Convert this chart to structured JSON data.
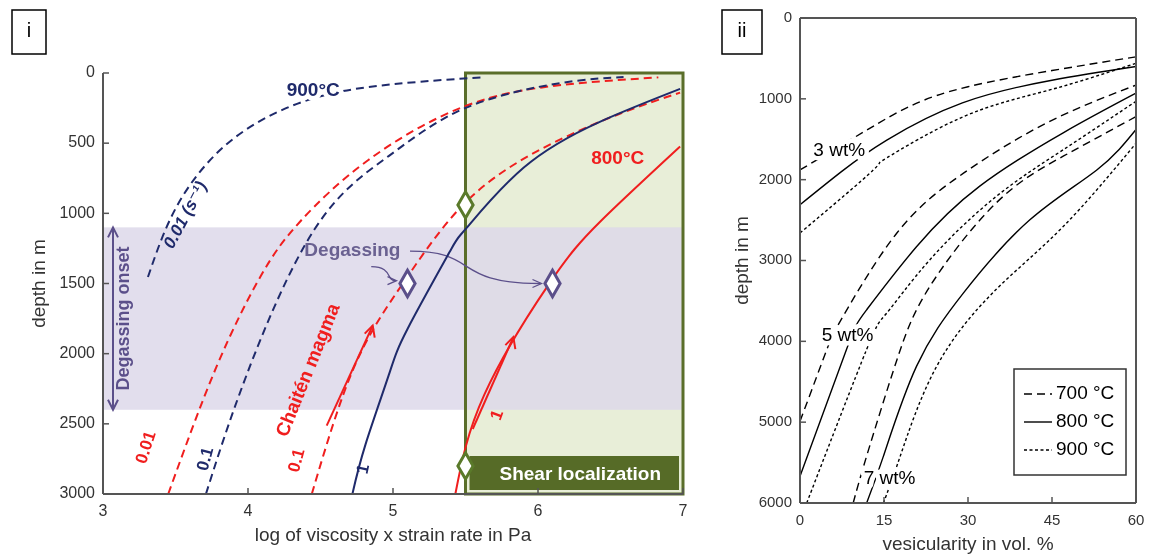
{
  "chart_data": [
    {
      "type": "line",
      "title": "i",
      "xlabel": "log of viscosity x strain rate in Pa",
      "ylabel": "depth in m",
      "xlim": [
        3,
        7
      ],
      "ylim": [
        3000,
        0
      ],
      "xticks": [
        3,
        4,
        5,
        6,
        7
      ],
      "yticks": [
        0,
        500,
        1000,
        1500,
        2000,
        2500,
        3000
      ],
      "series": [
        {
          "name": "0.01 (s⁻¹)",
          "color": "#1f2a6b",
          "line_style": "dashed",
          "x": [
            3.31,
            3.51,
            3.85,
            4.3,
            4.83,
            5.61
          ],
          "values": [
            1454,
            948,
            510,
            235,
            100,
            31
          ]
        },
        {
          "name": "0.01",
          "color": "#f01e1e",
          "line_style": "dashed",
          "x": [
            3.45,
            3.78,
            4.09,
            4.36,
            4.83,
            5.5,
            6.16,
            6.83
          ],
          "values": [
            3000,
            2100,
            1443,
            1058,
            620,
            235,
            86,
            31
          ]
        },
        {
          "name": "0.1",
          "color": "#1f2a6b",
          "line_style": "dashed",
          "x": [
            3.71,
            3.99,
            4.46,
            4.97,
            5.5,
            6.16,
            6.59
          ],
          "values": [
            3000,
            2153,
            1112,
            592,
            249,
            71,
            29
          ]
        },
        {
          "name": "0.1",
          "color": "#f01e1e",
          "line_style": "dashed",
          "x": [
            4.44,
            4.73,
            5.07,
            5.5,
            6.03,
            6.56,
            6.98
          ],
          "values": [
            3000,
            2100,
            1497,
            922,
            538,
            292,
            140
          ]
        },
        {
          "name": "1",
          "color": "#1f2a6b",
          "line_style": "solid",
          "x": [
            4.72,
            4.81,
            4.97,
            5.1,
            5.39,
            5.5,
            5.9,
            6.43,
            6.98
          ],
          "values": [
            3000,
            2648,
            2155,
            1824,
            1276,
            1113,
            675,
            346,
            113
          ]
        },
        {
          "name": "1",
          "color": "#f01e1e",
          "line_style": "solid",
          "x": [
            5.43,
            5.63,
            6.08,
            6.43,
            6.98
          ],
          "values": [
            3000,
            2292,
            1497,
            1058,
            524
          ]
        },
        {
          "type": "scatter",
          "color": "#5a7a2a",
          "marker": "diamond",
          "x": [
            5.5,
            5.5
          ],
          "values": [
            940,
            2800
          ]
        },
        {
          "type": "scatter",
          "color": "#5b4f8a",
          "marker": "diamond",
          "x": [
            5.1,
            6.1
          ],
          "values": [
            1500,
            1500
          ]
        }
      ],
      "bands": [
        {
          "axis": "x",
          "from": 5.5,
          "to": 7,
          "label": "Shear localization",
          "color": "#e8eed8"
        },
        {
          "axis": "y",
          "from": 1100,
          "to": 2400,
          "label": "Degassing onset",
          "color": "#ddd8ea"
        }
      ],
      "annotations": [
        "900°C",
        "800°C",
        "Degassing",
        {
          "text": "Chaitén magma",
          "x": 4.86,
          "y": 1800
        }
      ]
    },
    {
      "type": "line",
      "title": "ii",
      "xlabel": "vesicularity in vol. %",
      "ylabel": "depth in m",
      "xlim": [
        0,
        60
      ],
      "ylim": [
        6000,
        0
      ],
      "xticks": [
        0,
        15,
        30,
        45,
        60
      ],
      "yticks": [
        0,
        1000,
        2000,
        3000,
        4000,
        5000,
        6000
      ],
      "legend": "bottom right",
      "series": [
        {
          "name": "700 °C",
          "color": "#000000",
          "line_style": "dashed",
          "x": [
            0,
            11.6,
            20,
            30,
            45,
            60
          ],
          "values": [
            1880,
            1400,
            1080,
            850,
            650,
            480
          ]
        },
        {
          "name": "800 °C",
          "color": "#000000",
          "line_style": "solid",
          "x": [
            0,
            7.4,
            15.5,
            29,
            45,
            60
          ],
          "values": [
            2310,
            1900,
            1510,
            1050,
            770,
            600
          ]
        },
        {
          "name": "900 °C",
          "color": "#000000",
          "line_style": "dotted",
          "x": [
            0,
            13.1,
            15.5,
            29.2,
            44.6,
            60
          ],
          "values": [
            2660,
            1880,
            1730,
            1220,
            890,
            560
          ]
        },
        {
          "color": "#000000",
          "line_style": "dashed",
          "x": [
            0,
            4.8,
            7.7,
            17.3,
            29.2,
            44,
            60
          ],
          "values": [
            4990,
            4100,
            3690,
            2660,
            1920,
            1300,
            830
          ]
        },
        {
          "color": "#000000",
          "line_style": "solid",
          "x": [
            0,
            8.3,
            11.9,
            20.8,
            32.1,
            47,
            60
          ],
          "values": [
            5670,
            4100,
            3610,
            2830,
            2080,
            1420,
            930
          ]
        },
        {
          "color": "#000000",
          "line_style": "dotted",
          "x": [
            1.2,
            11.9,
            15.5,
            23.2,
            35,
            47,
            60
          ],
          "values": [
            6000,
            4100,
            3650,
            2990,
            2210,
            1630,
            1030
          ]
        },
        {
          "color": "#000000",
          "line_style": "dashed",
          "x": [
            9.5,
            11.9,
            17.3,
            23.2,
            35,
            47,
            60
          ],
          "values": [
            6000,
            5420,
            4230,
            3320,
            2290,
            1710,
            1220
          ]
        },
        {
          "color": "#000000",
          "line_style": "solid",
          "x": [
            11.9,
            14.9,
            20.8,
            29.2,
            41,
            53,
            60
          ],
          "values": [
            6000,
            5420,
            4310,
            3400,
            2500,
            1880,
            1380
          ]
        },
        {
          "color": "#000000",
          "line_style": "dotted",
          "x": [
            14.9,
            17.9,
            24.4,
            35,
            47,
            60
          ],
          "values": [
            6000,
            5420,
            4310,
            3360,
            2580,
            1550
          ]
        }
      ],
      "annotations": [
        "3 wt%",
        "5 wt%",
        "7 wt%"
      ]
    }
  ]
}
